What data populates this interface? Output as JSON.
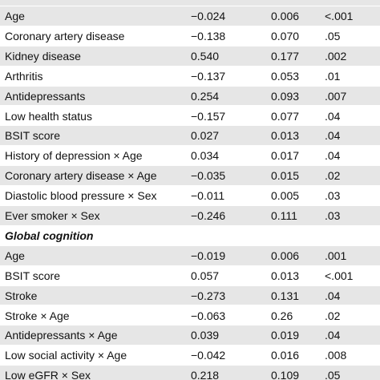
{
  "table": {
    "rows": [
      [
        "Age",
        "−0.024",
        "0.006",
        "<.001"
      ],
      [
        "Coronary artery disease",
        "−0.138",
        "0.070",
        ".05"
      ],
      [
        "Kidney disease",
        "0.540",
        "0.177",
        ".002"
      ],
      [
        "Arthritis",
        "−0.137",
        "0.053",
        ".01"
      ],
      [
        "Antidepressants",
        "0.254",
        "0.093",
        ".007"
      ],
      [
        "Low health status",
        "−0.157",
        "0.077",
        ".04"
      ],
      [
        "BSIT score",
        "0.027",
        "0.013",
        ".04"
      ],
      [
        "History of depression × Age",
        "0.034",
        "0.017",
        ".04"
      ],
      [
        "Coronary artery disease × Age",
        "−0.035",
        "0.015",
        ".02"
      ],
      [
        "Diastolic blood pressure × Sex",
        "−0.011",
        "0.005",
        ".03"
      ],
      [
        "Ever smoker × Sex",
        "−0.246",
        "0.111",
        ".03"
      ],
      [
        "Global cognition"
      ],
      [
        "Age",
        "−0.019",
        "0.006",
        ".001"
      ],
      [
        "BSIT score",
        "0.057",
        "0.013",
        "<.001"
      ],
      [
        "Stroke",
        "−0.273",
        "0.131",
        ".04"
      ],
      [
        "Stroke × Age",
        "−0.063",
        "0.26",
        ".02"
      ],
      [
        "Antidepressants × Age",
        "0.039",
        "0.019",
        ".04"
      ],
      [
        "Low social activity × Age",
        "−0.042",
        "0.016",
        ".008"
      ],
      [
        "Low eGFR × Sex",
        "0.218",
        "0.109",
        ".05"
      ]
    ]
  }
}
